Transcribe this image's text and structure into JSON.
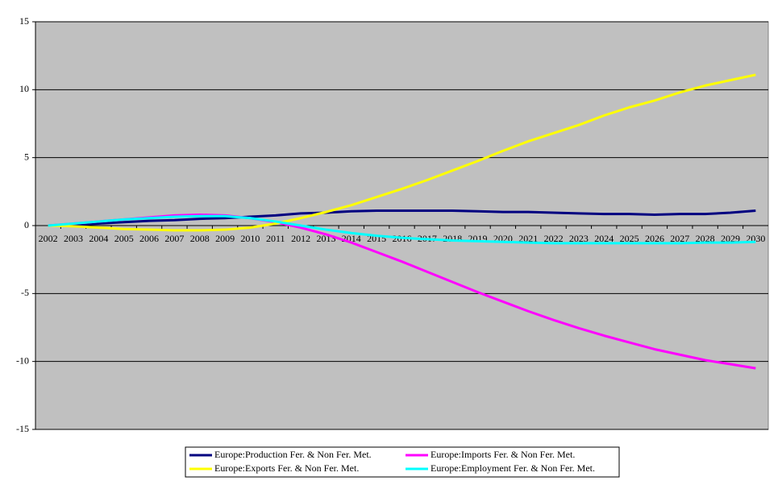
{
  "chart_data": {
    "type": "line",
    "categories": [
      "2002",
      "2003",
      "2004",
      "2005",
      "2006",
      "2007",
      "2008",
      "2009",
      "2010",
      "2011",
      "2012",
      "2013",
      "2014",
      "2015",
      "2016",
      "2017",
      "2018",
      "2019",
      "2020",
      "2021",
      "2022",
      "2023",
      "2024",
      "2025",
      "2026",
      "2027",
      "2028",
      "2029",
      "2030"
    ],
    "series": [
      {
        "name": "Europe:Production Fer. & Non Fer. Met.",
        "color": "#000080",
        "values": [
          0,
          0.05,
          0.15,
          0.25,
          0.35,
          0.4,
          0.5,
          0.55,
          0.65,
          0.75,
          0.9,
          0.95,
          1.05,
          1.1,
          1.1,
          1.1,
          1.1,
          1.05,
          1.0,
          1.0,
          0.95,
          0.9,
          0.85,
          0.85,
          0.8,
          0.85,
          0.85,
          0.95,
          1.1
        ]
      },
      {
        "name": "Europe:Imports Fer. & Non Fer. Met.",
        "color": "#ff00ff",
        "values": [
          0,
          0.15,
          0.3,
          0.45,
          0.6,
          0.75,
          0.8,
          0.75,
          0.55,
          0.25,
          -0.15,
          -0.65,
          -1.25,
          -1.95,
          -2.65,
          -3.4,
          -4.15,
          -4.9,
          -5.6,
          -6.3,
          -6.95,
          -7.55,
          -8.1,
          -8.6,
          -9.1,
          -9.5,
          -9.9,
          -10.2,
          -10.5
        ]
      },
      {
        "name": "Europe:Exports Fer. & Non Fer. Met.",
        "color": "#ffff00",
        "values": [
          0,
          -0.05,
          -0.15,
          -0.25,
          -0.3,
          -0.35,
          -0.35,
          -0.3,
          -0.15,
          0.15,
          0.55,
          1.0,
          1.5,
          2.1,
          2.7,
          3.35,
          4.05,
          4.75,
          5.5,
          6.2,
          6.8,
          7.4,
          8.1,
          8.7,
          9.2,
          9.8,
          10.3,
          10.7,
          11.1
        ]
      },
      {
        "name": "Europe:Employment Fer. & Non Fer. Met.",
        "color": "#00ffff",
        "values": [
          0,
          0.15,
          0.3,
          0.45,
          0.55,
          0.65,
          0.7,
          0.7,
          0.55,
          0.3,
          0,
          -0.3,
          -0.55,
          -0.75,
          -0.9,
          -1.0,
          -1.1,
          -1.15,
          -1.2,
          -1.25,
          -1.3,
          -1.3,
          -1.3,
          -1.3,
          -1.3,
          -1.3,
          -1.25,
          -1.25,
          -1.2
        ]
      }
    ],
    "ylim": [
      -15,
      15
    ],
    "yticks": [
      -15,
      -10,
      -5,
      0,
      5,
      10,
      15
    ],
    "grid": true,
    "legend": "bottom",
    "background": "#c0c0c0"
  }
}
